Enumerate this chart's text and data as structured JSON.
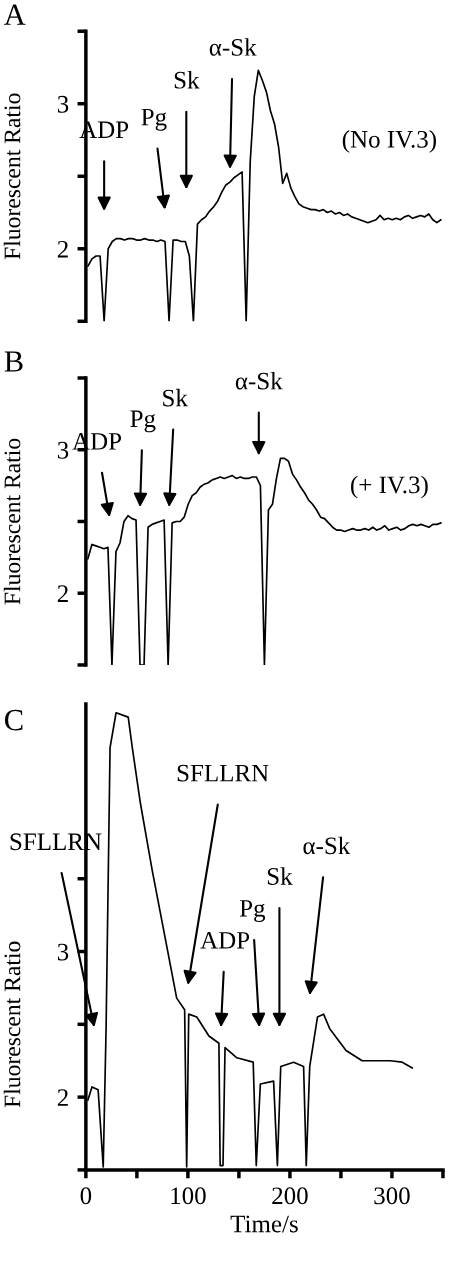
{
  "chart_data": [
    {
      "type": "line",
      "title": "A",
      "ylabel": "Fluorescent Ratio",
      "ylim": [
        1.5,
        3.5
      ],
      "yticks": [
        {
          "value": 1.5,
          "label": null
        },
        2,
        {
          "value": 2.5,
          "label": null
        },
        3,
        {
          "value": 3.5,
          "label": null
        }
      ],
      "categories": [
        null,
        null,
        null,
        null,
        null,
        null,
        null,
        null,
        null,
        null,
        null,
        null,
        null,
        null,
        null,
        null,
        null,
        null,
        null,
        null,
        null,
        null,
        null,
        null,
        null,
        null,
        null,
        null,
        null,
        null,
        null,
        null,
        null,
        null,
        null,
        null,
        null,
        null,
        null,
        null,
        null,
        null,
        null,
        null,
        null,
        null,
        null,
        null,
        null,
        null,
        null,
        null,
        null,
        null,
        null,
        null,
        null,
        null,
        null,
        null,
        null,
        null,
        null,
        null,
        null,
        null,
        null,
        null,
        null,
        null,
        null,
        null,
        null,
        null,
        null,
        null,
        null,
        null,
        null,
        null,
        null,
        null,
        null,
        null,
        null,
        null,
        null,
        null
      ],
      "series": [
        {
          "color": "#000000",
          "values": [
            1.88,
            1.93,
            1.95,
            1.95,
            1.5,
            2.0,
            2.05,
            2.07,
            2.07,
            2.06,
            2.07,
            2.07,
            2.06,
            2.06,
            2.07,
            2.06,
            2.06,
            2.05,
            2.06,
            2.05,
            1.5,
            2.06,
            2.06,
            2.05,
            2.05,
            1.95,
            1.5,
            2.17,
            2.2,
            2.22,
            2.26,
            2.29,
            2.33,
            2.39,
            2.44,
            2.46,
            2.49,
            2.51,
            2.53,
            1.5,
            2.6,
            3.05,
            3.23,
            3.16,
            3.08,
            2.95,
            2.86,
            2.7,
            2.45,
            2.52,
            2.42,
            2.36,
            2.31,
            2.29,
            2.28,
            2.27,
            2.27,
            2.26,
            2.27,
            2.25,
            2.26,
            2.24,
            2.25,
            2.23,
            2.24,
            2.22,
            2.21,
            2.2,
            2.19,
            2.18,
            2.19,
            2.2,
            2.23,
            2.2,
            2.21,
            2.2,
            2.21,
            2.2,
            2.22,
            2.23,
            2.21,
            2.22,
            2.23,
            2.22,
            2.24,
            2.2,
            2.18,
            2.2
          ]
        }
      ],
      "annotations": [
        "ADP",
        "Pg",
        "Sk",
        "α-Sk",
        "(No IV.3)"
      ]
    },
    {
      "type": "line",
      "title": "B",
      "ylabel": "Fluorescent Ratio",
      "ylim": [
        1.5,
        3.5
      ],
      "yticks": [
        {
          "value": 1.5,
          "label": null
        },
        2,
        {
          "value": 2.5,
          "label": null
        },
        3,
        {
          "value": 3.5,
          "label": null
        }
      ],
      "categories": [
        null,
        null,
        null,
        null,
        null,
        null,
        null,
        null,
        null,
        null,
        null,
        null,
        null,
        null,
        null,
        null,
        null,
        null,
        null,
        null,
        null,
        null,
        null,
        null,
        null,
        null,
        null,
        null,
        null,
        null,
        null,
        null,
        null,
        null,
        null,
        null,
        null,
        null,
        null,
        null,
        null,
        null,
        null,
        null,
        null,
        null,
        null,
        null,
        null,
        null,
        null,
        null,
        null,
        null,
        null,
        null,
        null,
        null,
        null,
        null,
        null,
        null,
        null,
        null,
        null,
        null,
        null,
        null,
        null,
        null,
        null,
        null,
        null,
        null,
        null,
        null,
        null,
        null,
        null,
        null,
        null,
        null,
        null,
        null,
        null,
        null,
        null,
        null,
        null
      ],
      "series": [
        {
          "color": "#000000",
          "values": [
            2.24,
            2.34,
            2.33,
            2.32,
            2.31,
            2.32,
            1.5,
            2.29,
            2.35,
            2.5,
            2.54,
            2.52,
            2.51,
            1.5,
            1.5,
            2.46,
            2.48,
            2.49,
            2.5,
            2.51,
            1.5,
            2.49,
            2.5,
            2.5,
            2.53,
            2.62,
            2.68,
            2.7,
            2.74,
            2.76,
            2.77,
            2.79,
            2.8,
            2.81,
            2.8,
            2.81,
            2.82,
            2.8,
            2.81,
            2.8,
            2.8,
            2.81,
            2.81,
            2.75,
            1.5,
            2.58,
            2.62,
            2.8,
            2.94,
            2.94,
            2.92,
            2.83,
            2.79,
            2.74,
            2.7,
            2.65,
            2.62,
            2.58,
            2.53,
            2.52,
            2.49,
            2.46,
            2.44,
            2.44,
            2.43,
            2.44,
            2.45,
            2.44,
            2.44,
            2.45,
            2.44,
            2.46,
            2.44,
            2.45,
            2.47,
            2.44,
            2.45,
            2.46,
            2.44,
            2.45,
            2.47,
            2.48,
            2.47,
            2.48,
            2.47,
            2.46,
            2.48,
            2.48,
            2.49
          ]
        }
      ],
      "annotations": [
        "ADP",
        "Pg",
        "Sk",
        "α-Sk",
        "(+ IV.3)"
      ]
    },
    {
      "type": "line",
      "title": "C",
      "xlabel": "Time/s",
      "ylabel": "Fluorescent Ratio",
      "xlim": [
        0,
        350
      ],
      "ylim": [
        1.5,
        4.7
      ],
      "xticks": [
        0,
        {
          "value": 50,
          "label": null
        },
        100,
        {
          "value": 150,
          "label": null
        },
        200,
        {
          "value": 250,
          "label": null
        },
        300,
        {
          "value": 350,
          "label": null
        }
      ],
      "yticks": [
        {
          "value": 1.5,
          "label": null
        },
        2,
        {
          "value": 2.5,
          "label": null
        },
        3,
        {
          "value": 3.5,
          "label": null
        }
      ],
      "series": [
        {
          "color": "#000000",
          "x": [
            2,
            6,
            12,
            17,
            19.8,
            23.7,
            29.6,
            41.5,
            45.5,
            53.4,
            65.2,
            77,
            89,
            96.8,
            98.8,
            100.8,
            108.7,
            120.6,
            130.4,
            131.6,
            134.4,
            136.4,
            148,
            164,
            167,
            171,
            184,
            187.7,
            191,
            203.6,
            213.4,
            216,
            219.4,
            227,
            233,
            239,
            255,
            270.8,
            298.4,
            310,
            320
          ],
          "values": [
            1.98,
            2.07,
            2.05,
            1.52,
            2.47,
            4.4,
            4.64,
            4.61,
            4.4,
            4.02,
            3.55,
            3.12,
            2.68,
            2.6,
            1.52,
            2.57,
            2.55,
            2.42,
            2.37,
            1.53,
            1.53,
            2.34,
            2.27,
            2.24,
            1.53,
            2.09,
            2.11,
            1.53,
            2.21,
            2.24,
            2.21,
            1.53,
            2.21,
            2.55,
            2.57,
            2.47,
            2.32,
            2.25,
            2.25,
            2.24,
            2.2
          ]
        }
      ],
      "annotations": [
        "SFLLRN",
        "SFLLRN",
        "ADP",
        "Pg",
        "Sk",
        "α-Sk"
      ]
    }
  ]
}
